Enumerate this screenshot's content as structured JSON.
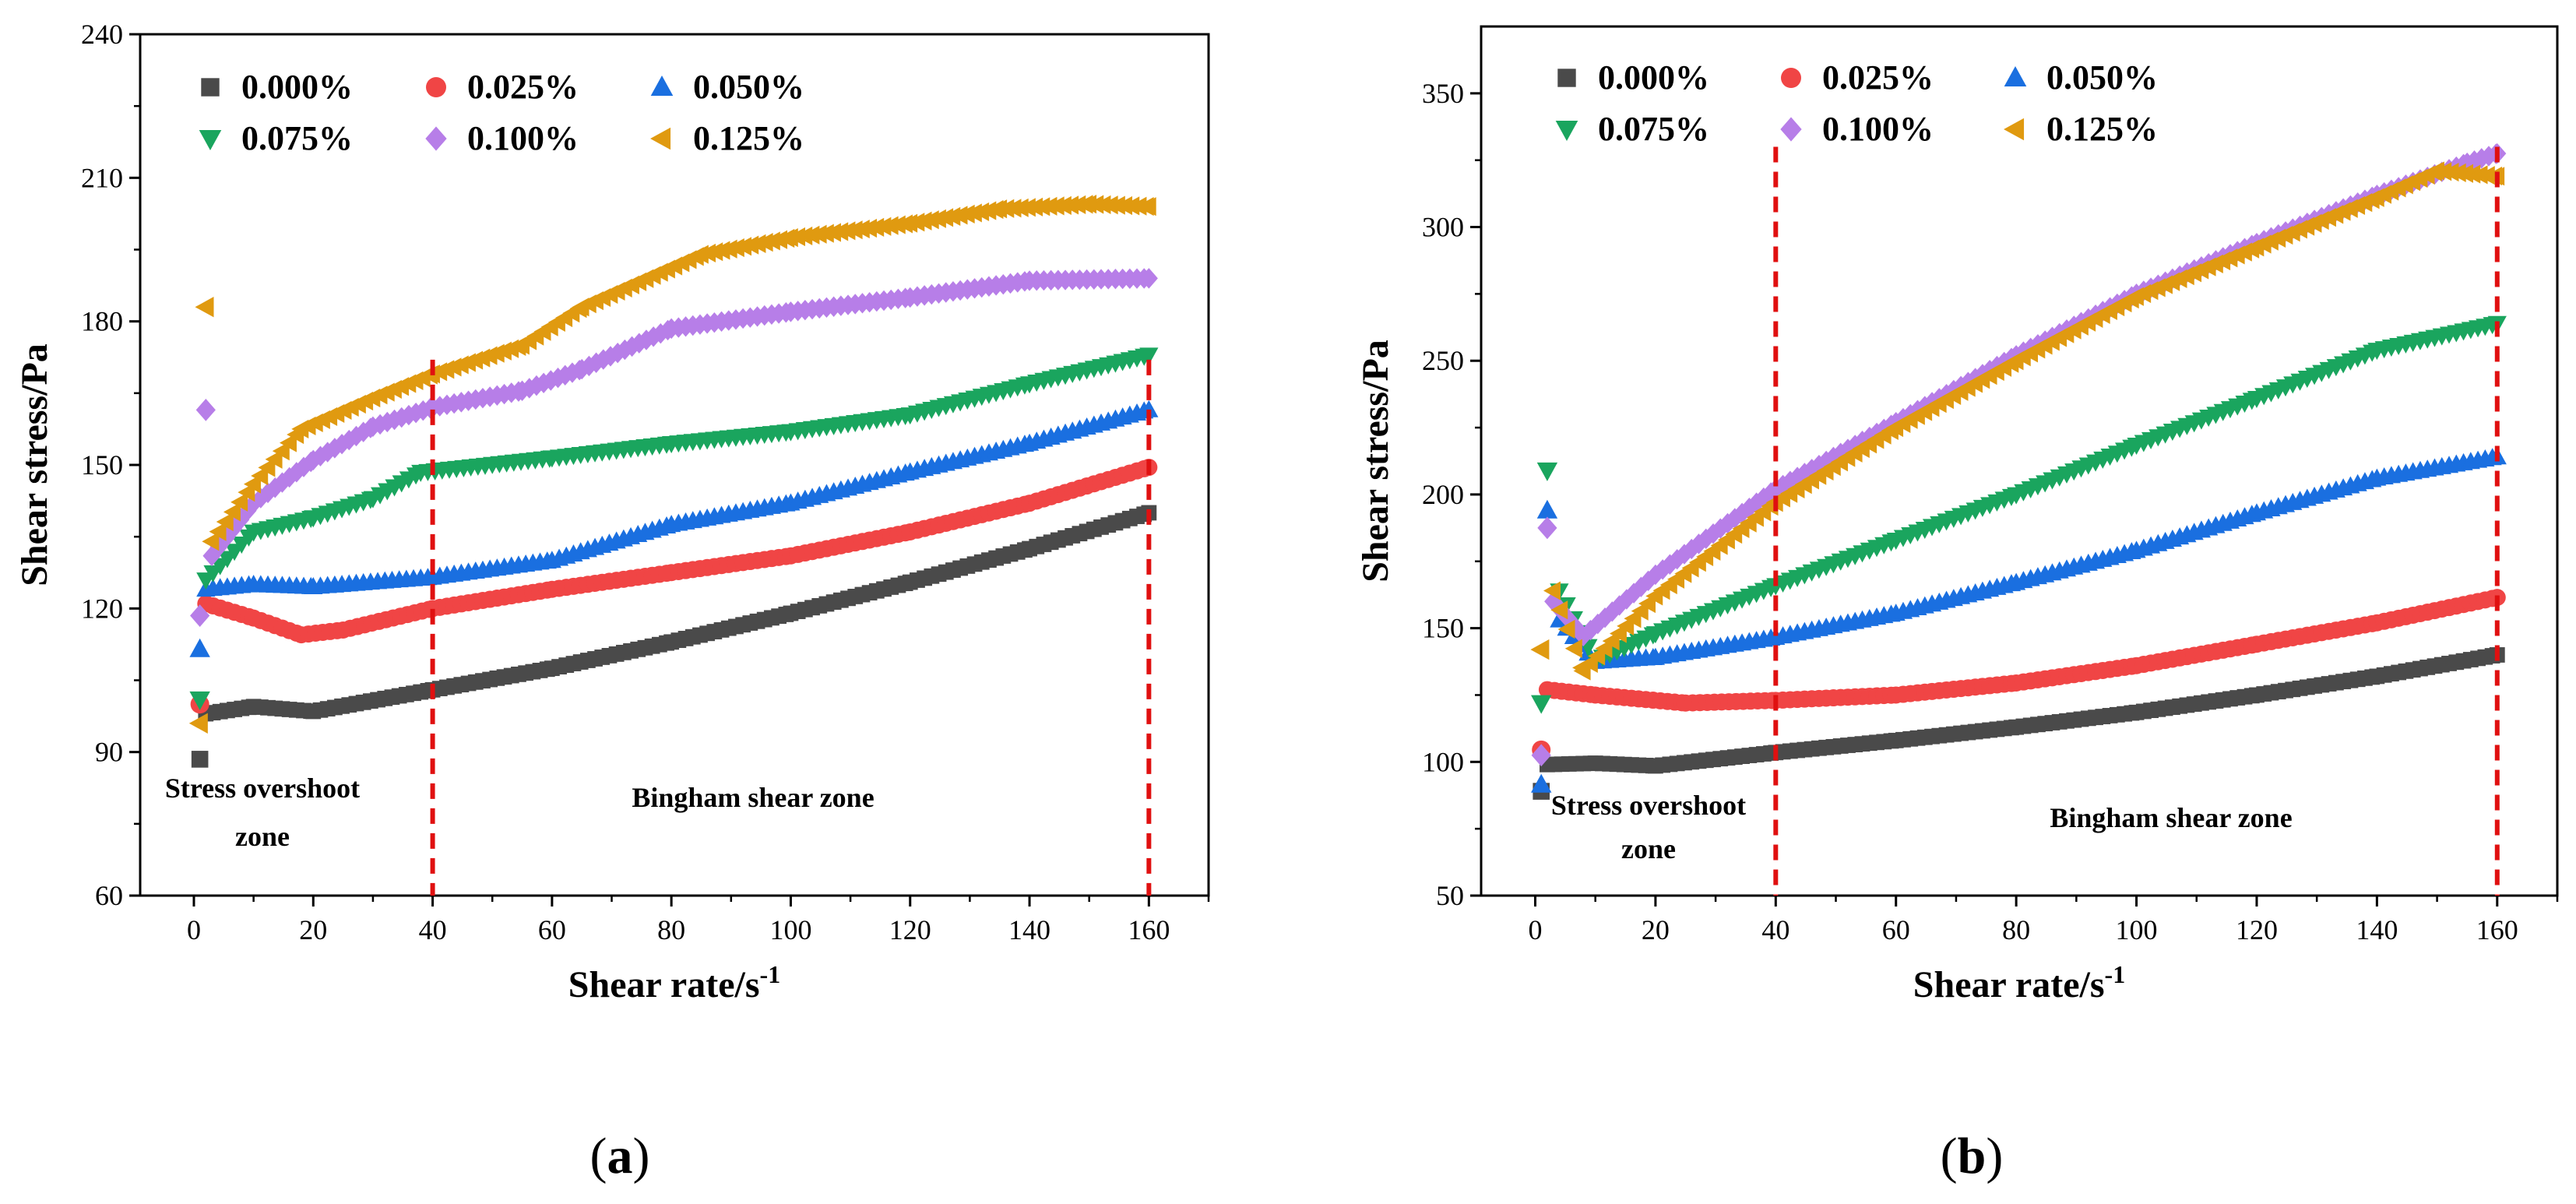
{
  "chart_data": [
    {
      "type": "scatter",
      "panel_label": "a",
      "xlabel": "Shear rate/s",
      "xlabel_sup": "-1",
      "ylabel": "Shear stress/Pa",
      "xlim": [
        -9,
        170
      ],
      "ylim": [
        60,
        240
      ],
      "xticks": [
        0,
        20,
        40,
        60,
        80,
        100,
        120,
        140,
        160
      ],
      "yticks": [
        60,
        90,
        120,
        150,
        180,
        210,
        240
      ],
      "legend_position": "top-left",
      "vlines": [
        40,
        160
      ],
      "annotations": [
        "Stress overshoot",
        "zone",
        "Bingham shear zone"
      ],
      "series": [
        {
          "name": "0.000%",
          "marker": "square",
          "color": "#4a4a4a",
          "outliers": [
            [
              1,
              88.5
            ]
          ],
          "points": [
            [
              2,
              98
            ],
            [
              10,
              99.5
            ],
            [
              20,
              98.5
            ],
            [
              40,
              103
            ],
            [
              60,
              107.5
            ],
            [
              80,
              113
            ],
            [
              100,
              119
            ],
            [
              120,
              125.5
            ],
            [
              140,
              132.5
            ],
            [
              160,
              140
            ]
          ]
        },
        {
          "name": "0.025%",
          "marker": "circle",
          "color": "#f04545",
          "outliers": [
            [
              1,
              100
            ]
          ],
          "points": [
            [
              2,
              121
            ],
            [
              10,
              118
            ],
            [
              18,
              114.5
            ],
            [
              25,
              115.5
            ],
            [
              40,
              120
            ],
            [
              60,
              124
            ],
            [
              80,
              127.5
            ],
            [
              100,
              131
            ],
            [
              120,
              136
            ],
            [
              140,
              142
            ],
            [
              160,
              149.5
            ]
          ]
        },
        {
          "name": "0.050%",
          "marker": "triangle-up",
          "color": "#1a6fe0",
          "outliers": [
            [
              1,
              111.5
            ]
          ],
          "points": [
            [
              2,
              124
            ],
            [
              10,
              125
            ],
            [
              20,
              124.5
            ],
            [
              40,
              126.5
            ],
            [
              60,
              130
            ],
            [
              80,
              137.5
            ],
            [
              100,
              142
            ],
            [
              120,
              148.5
            ],
            [
              140,
              154.5
            ],
            [
              160,
              161.5
            ]
          ]
        },
        {
          "name": "0.075%",
          "marker": "triangle-down",
          "color": "#1aa55e",
          "outliers": [
            [
              1,
              101
            ]
          ],
          "points": [
            [
              2,
              126
            ],
            [
              10,
              136
            ],
            [
              20,
              139
            ],
            [
              30,
              143
            ],
            [
              38,
              148.5
            ],
            [
              60,
              151.5
            ],
            [
              80,
              154.5
            ],
            [
              100,
              157
            ],
            [
              120,
              160.5
            ],
            [
              140,
              167
            ],
            [
              160,
              173
            ]
          ]
        },
        {
          "name": "0.100%",
          "marker": "diamond",
          "color": "#b77ee8",
          "outliers": [
            [
              1,
              118.5
            ],
            [
              2,
              161.5
            ]
          ],
          "points": [
            [
              3,
              131
            ],
            [
              10,
              142
            ],
            [
              20,
              151
            ],
            [
              30,
              158
            ],
            [
              40,
              162
            ],
            [
              55,
              165.5
            ],
            [
              65,
              170
            ],
            [
              80,
              178.5
            ],
            [
              100,
              182
            ],
            [
              120,
              185
            ],
            [
              140,
              188.5
            ],
            [
              160,
              189
            ]
          ]
        },
        {
          "name": "0.125%",
          "marker": "triangle-left",
          "color": "#e09a10",
          "outliers": [
            [
              1,
              96
            ],
            [
              2,
              183
            ]
          ],
          "points": [
            [
              3,
              134
            ],
            [
              10,
              146
            ],
            [
              18,
              157.5
            ],
            [
              30,
              164
            ],
            [
              40,
              169
            ],
            [
              55,
              175
            ],
            [
              65,
              183
            ],
            [
              85,
              194
            ],
            [
              100,
              197.5
            ],
            [
              120,
              200.5
            ],
            [
              135,
              203.5
            ],
            [
              150,
              204.5
            ],
            [
              160,
              204
            ]
          ]
        }
      ]
    },
    {
      "type": "scatter",
      "panel_label": "b",
      "xlabel": "Shear rate/s",
      "xlabel_sup": "-1",
      "ylabel": "Shear stress/Pa",
      "xlim": [
        -9,
        170
      ],
      "ylim": [
        50,
        375
      ],
      "xticks": [
        0,
        20,
        40,
        60,
        80,
        100,
        120,
        140,
        160
      ],
      "yticks": [
        50,
        100,
        150,
        200,
        250,
        300,
        350
      ],
      "legend_position": "top-left",
      "vlines": [
        40,
        160
      ],
      "annotations": [
        "Stress overshoot",
        "zone",
        "Bingham shear zone"
      ],
      "series": [
        {
          "name": "0.000%",
          "marker": "square",
          "color": "#4a4a4a",
          "outliers": [
            [
              1,
              89
            ]
          ],
          "points": [
            [
              2,
              99
            ],
            [
              10,
              99.5
            ],
            [
              20,
              98.5
            ],
            [
              40,
              103.5
            ],
            [
              60,
              108
            ],
            [
              80,
              113
            ],
            [
              100,
              118.5
            ],
            [
              120,
              125
            ],
            [
              140,
              132
            ],
            [
              160,
              140
            ]
          ]
        },
        {
          "name": "0.025%",
          "marker": "circle",
          "color": "#f04545",
          "outliers": [
            [
              1,
              104.5
            ]
          ],
          "points": [
            [
              2,
              127
            ],
            [
              10,
              125
            ],
            [
              25,
              122
            ],
            [
              40,
              123
            ],
            [
              60,
              125
            ],
            [
              80,
              129.5
            ],
            [
              100,
              136
            ],
            [
              120,
              144
            ],
            [
              140,
              152
            ],
            [
              160,
              161.5
            ]
          ]
        },
        {
          "name": "0.050%",
          "marker": "triangle-up",
          "color": "#1a6fe0",
          "outliers": [
            [
              1,
              91.5
            ],
            [
              2,
              194
            ]
          ],
          "points": [
            [
              4,
              153
            ],
            [
              10,
              137.5
            ],
            [
              20,
              139
            ],
            [
              40,
              146.5
            ],
            [
              60,
              155.5
            ],
            [
              80,
              167
            ],
            [
              100,
              179
            ],
            [
              120,
              193
            ],
            [
              140,
              206
            ],
            [
              160,
              214
            ]
          ]
        },
        {
          "name": "0.075%",
          "marker": "triangle-down",
          "color": "#1aa55e",
          "outliers": [
            [
              1,
              122
            ],
            [
              2,
              209
            ]
          ],
          "points": [
            [
              4,
              164
            ],
            [
              10,
              138
            ],
            [
              20,
              148
            ],
            [
              40,
              166
            ],
            [
              60,
              183
            ],
            [
              80,
              200
            ],
            [
              100,
              218.5
            ],
            [
              120,
              236
            ],
            [
              140,
              254
            ],
            [
              160,
              264
            ]
          ]
        },
        {
          "name": "0.100%",
          "marker": "diamond",
          "color": "#b77ee8",
          "outliers": [
            [
              1,
              102.5
            ],
            [
              2,
              187.5
            ]
          ],
          "points": [
            [
              3,
              160
            ],
            [
              8,
              147
            ],
            [
              20,
              170
            ],
            [
              40,
              202
            ],
            [
              60,
              227
            ],
            [
              80,
              252
            ],
            [
              100,
              275
            ],
            [
              120,
              294
            ],
            [
              140,
              312
            ],
            [
              155,
              324
            ],
            [
              160,
              327.5
            ]
          ]
        },
        {
          "name": "0.125%",
          "marker": "triangle-left",
          "color": "#e09a10",
          "outliers": [
            [
              1,
              142
            ]
          ],
          "points": [
            [
              3,
              164
            ],
            [
              8,
              134
            ],
            [
              20,
              162
            ],
            [
              40,
              197
            ],
            [
              60,
              225
            ],
            [
              80,
              250
            ],
            [
              100,
              274
            ],
            [
              120,
              292.5
            ],
            [
              140,
              311
            ],
            [
              150,
              321
            ],
            [
              160,
              319
            ]
          ]
        }
      ]
    }
  ]
}
